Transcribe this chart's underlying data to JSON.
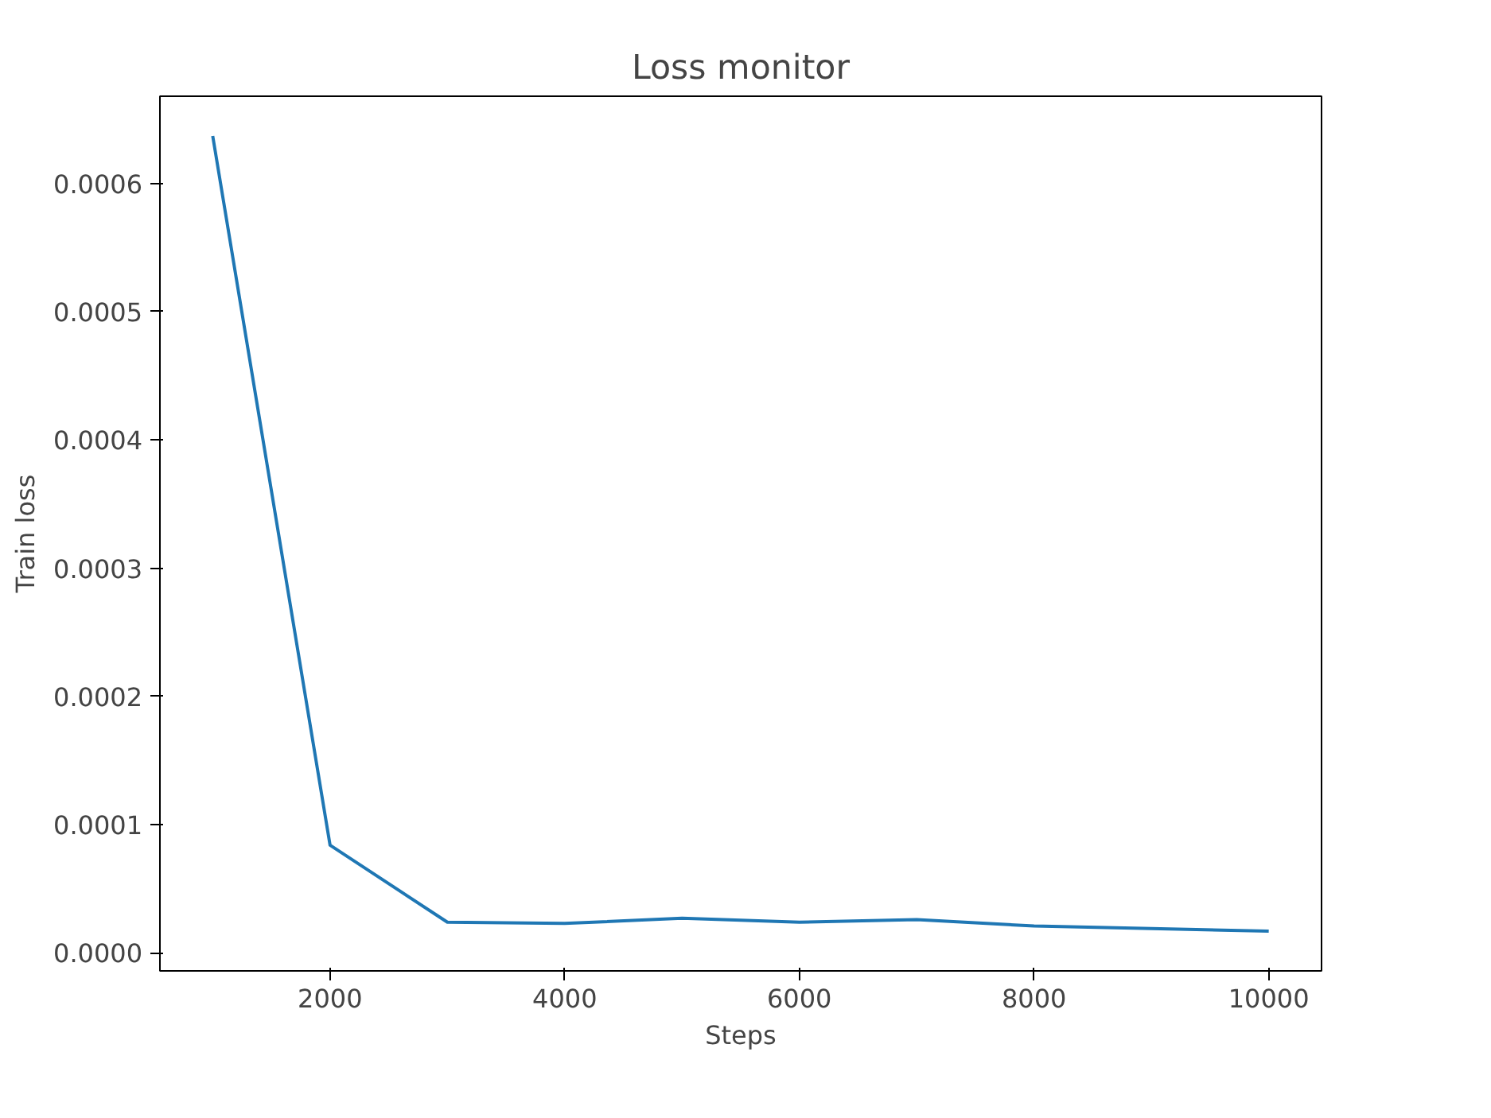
{
  "chart_data": {
    "type": "line",
    "title": "Loss monitor",
    "xlabel": "Steps",
    "ylabel": "Train loss",
    "x": [
      1000,
      2000,
      3000,
      4000,
      5000,
      6000,
      7000,
      8000,
      9000,
      10000
    ],
    "series": [
      {
        "color": "#1f77b4",
        "values": [
          0.000637,
          8.4e-05,
          2.4e-05,
          2.3e-05,
          2.7e-05,
          2.4e-05,
          2.6e-05,
          2.1e-05,
          1.9e-05,
          1.7e-05
        ]
      }
    ],
    "xlim": [
      550,
      10450
    ],
    "ylim": [
      -1.4e-05,
      0.000668
    ],
    "xticks": [
      2000,
      4000,
      6000,
      8000,
      10000
    ],
    "yticks": [
      {
        "value": 0,
        "label": "0.0000"
      },
      {
        "value": 0.0001,
        "label": "0.0001"
      },
      {
        "value": 0.0002,
        "label": "0.0002"
      },
      {
        "value": 0.0003,
        "label": "0.0003"
      },
      {
        "value": 0.0004,
        "label": "0.0004"
      },
      {
        "value": 0.0005,
        "label": "0.0005"
      },
      {
        "value": 0.0006,
        "label": "0.0006"
      }
    ],
    "grid": false,
    "marker": "none",
    "line_style": "solid"
  }
}
